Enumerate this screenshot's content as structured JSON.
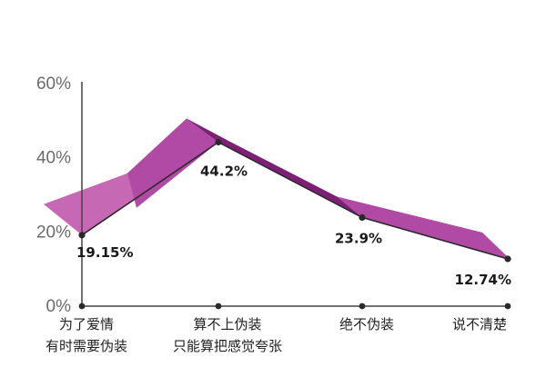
{
  "chart_data": {
    "type": "line",
    "title": "",
    "xlabel": "",
    "ylabel": "",
    "ylim": [
      0,
      60
    ],
    "yticks": [
      "0%",
      "20%",
      "40%",
      "60%"
    ],
    "ytick_values": [
      0,
      20,
      40,
      60
    ],
    "grid": false,
    "categories": [
      [
        "为了爱情",
        "有时需要伪装"
      ],
      [
        "算不上伪装",
        "只能算把感觉夸张"
      ],
      [
        "绝不伪装"
      ],
      [
        "说不清楚"
      ]
    ],
    "series": [
      {
        "values": [
          19.15,
          44.2,
          23.9,
          12.74
        ],
        "labels": [
          "19.15%",
          "44.2%",
          "23.9%",
          "12.74%"
        ]
      }
    ]
  },
  "colors": {
    "ribbon_light": "#c768b4",
    "ribbon_mid": "#b04aa4",
    "ribbon_dark": "#7e1f76",
    "line": "#2a2a2a",
    "axis": "#444444"
  }
}
